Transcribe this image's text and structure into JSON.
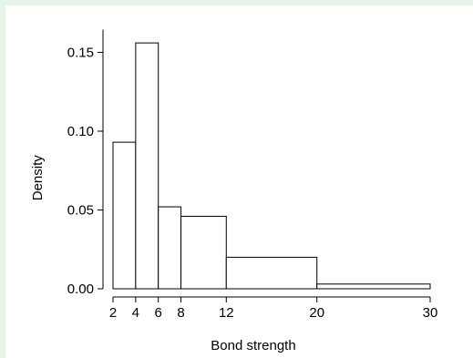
{
  "chart_data": {
    "type": "bar",
    "subtype": "histogram",
    "xlabel": "Bond strength",
    "ylabel": "Density",
    "bins": [
      {
        "from": 2,
        "to": 4,
        "density": 0.093
      },
      {
        "from": 4,
        "to": 6,
        "density": 0.156
      },
      {
        "from": 6,
        "to": 8,
        "density": 0.052
      },
      {
        "from": 8,
        "to": 12,
        "density": 0.046
      },
      {
        "from": 12,
        "to": 20,
        "density": 0.02
      },
      {
        "from": 20,
        "to": 30,
        "density": 0.003
      }
    ],
    "x_ticks": [
      2,
      4,
      6,
      8,
      12,
      20,
      30
    ],
    "x_tick_labels": [
      "2",
      "4",
      "6",
      "8",
      "12",
      "20",
      "30"
    ],
    "y_ticks": [
      0,
      0.05,
      0.1,
      0.15
    ],
    "y_tick_labels": [
      "0.00",
      "0.05",
      "0.10",
      "0.15"
    ],
    "xlim": [
      2,
      30
    ],
    "ylim": [
      0,
      0.16
    ],
    "grid": false,
    "legend": "none",
    "colors": {
      "bar_fill": "#ffffff",
      "bar_edge": "#000000",
      "background": "#e6f4ea"
    }
  }
}
